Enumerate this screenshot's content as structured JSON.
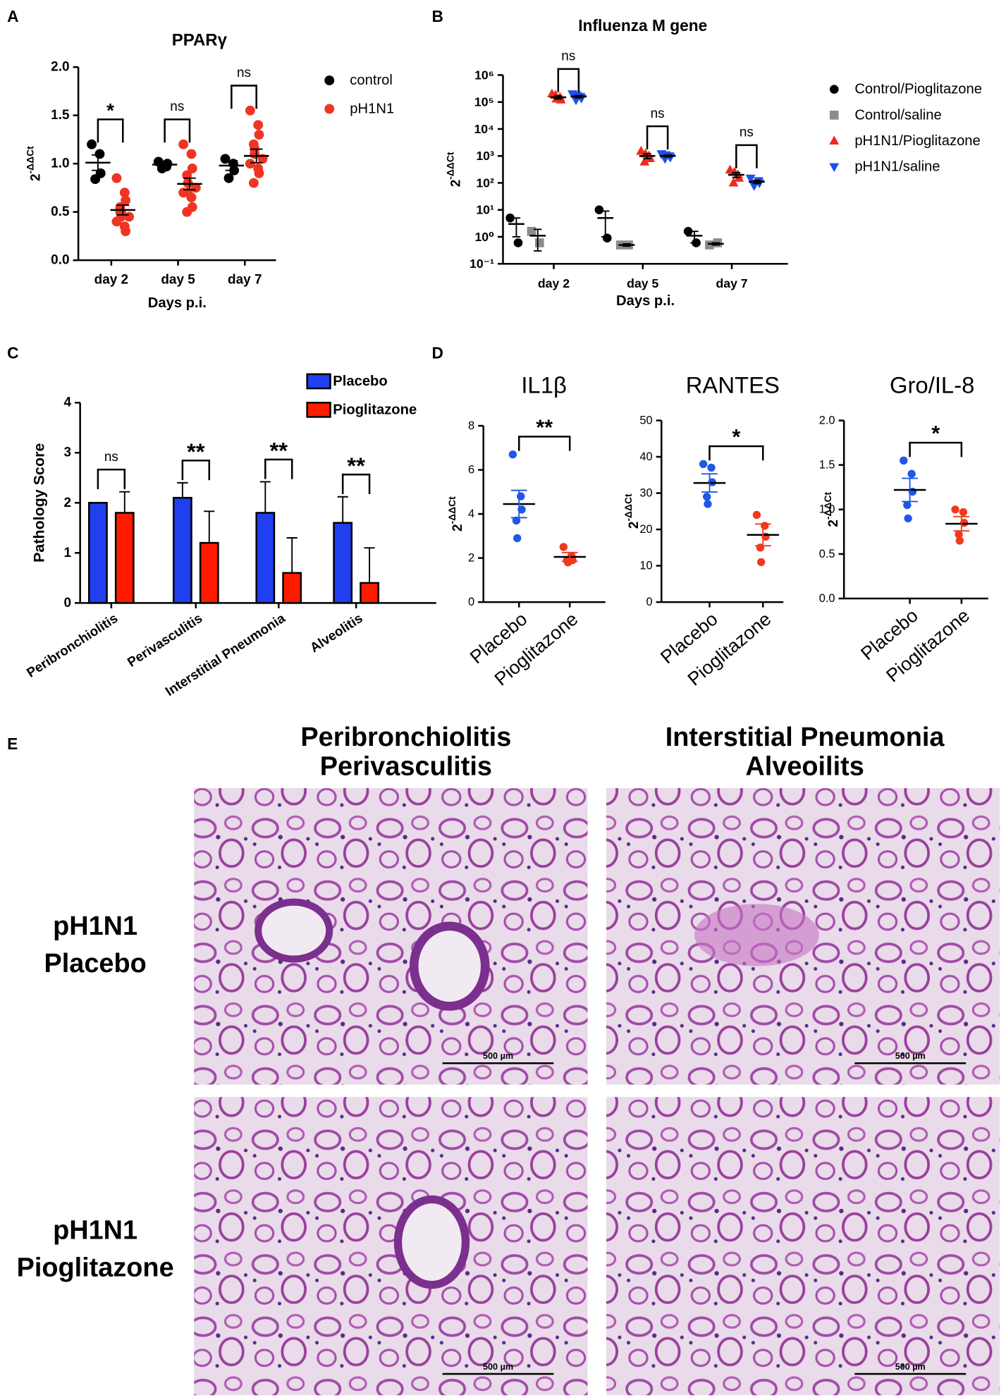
{
  "panel_labels": [
    "A",
    "B",
    "C",
    "D",
    "E"
  ],
  "chart_data": [
    {
      "type": "dot",
      "title": "PPARγ",
      "ylabel": [
        "2",
        "-ΔΔCt"
      ],
      "xlabel": "Days p.i.",
      "categories": [
        "day 2",
        "day 5",
        "day 7"
      ],
      "ylim": [
        0,
        2
      ],
      "yticks": [
        {
          "value": 0,
          "label": "0.0"
        },
        0.5,
        {
          "value": 1,
          "label": "1.0"
        },
        1.5,
        {
          "value": 2,
          "label": "2.0"
        }
      ],
      "legend": "right",
      "series": [
        {
          "name": "control",
          "color": "#000000",
          "marker": "circle",
          "values": [
            [
              1.2,
              1.1,
              0.9,
              0.84
            ],
            [
              1.02,
              0.97,
              1.0,
              0.95
            ],
            [
              1.05,
              1.0,
              0.93,
              0.85
            ]
          ],
          "mean": [
            1.01,
            0.99,
            0.98
          ],
          "sem": [
            0.08,
            0.03,
            0.05
          ]
        },
        {
          "name": "pH1N1",
          "color": "#ee3524",
          "marker": "circle",
          "values": [
            [
              0.85,
              0.7,
              0.62,
              0.55,
              0.5,
              0.45,
              0.4,
              0.35,
              0.3,
              0.5,
              0.45
            ],
            [
              1.2,
              1.1,
              0.95,
              0.88,
              0.8,
              0.75,
              0.7,
              0.65,
              0.55,
              0.5,
              0.7
            ],
            [
              1.55,
              1.4,
              1.3,
              1.2,
              1.1,
              1.05,
              1.0,
              0.95,
              0.9,
              0.8,
              1.15
            ]
          ],
          "mean": [
            0.52,
            0.79,
            1.08
          ],
          "sem": [
            0.05,
            0.06,
            0.07
          ]
        }
      ],
      "significance": [
        "*",
        "ns",
        "ns"
      ]
    },
    {
      "type": "dot",
      "title": "Influenza M gene",
      "ylabel": [
        "2",
        "-ΔΔCt"
      ],
      "xlabel": "Days p.i.",
      "categories": [
        "day 2",
        "day 5",
        "day 7"
      ],
      "log": true,
      "ylim": [
        0.1,
        1000000
      ],
      "yticks": [
        {
          "value": 0.1,
          "label": "10⁻¹"
        },
        {
          "value": 1,
          "label": "10⁰"
        },
        {
          "value": 10,
          "label": "10¹"
        },
        {
          "value": 100,
          "label": "10²"
        },
        {
          "value": 1000,
          "label": "10³"
        },
        {
          "value": 10000,
          "label": "10⁴"
        },
        {
          "value": 100000,
          "label": "10⁵"
        },
        {
          "value": 1000000,
          "label": "10⁶"
        }
      ],
      "legend": "right",
      "series": [
        {
          "name": "Control/Pioglitazone",
          "color": "#000000",
          "marker": "circle",
          "values": [
            [
              5,
              0.6
            ],
            [
              10,
              0.9
            ],
            [
              1.6,
              0.6
            ]
          ],
          "mean": [
            3,
            5,
            1.1
          ],
          "sem": [
            2,
            4,
            0.5
          ]
        },
        {
          "name": "Control/saline",
          "color": "#8c8c8c",
          "marker": "square",
          "values": [
            [
              1.6,
              0.6
            ],
            [
              0.5,
              0.5
            ],
            [
              0.5,
              0.6
            ]
          ],
          "mean": [
            1.1,
            0.5,
            0.55
          ],
          "sem": [
            0.8,
            0.05,
            0.05
          ]
        },
        {
          "name": "pH1N1/Pioglitazone",
          "color": "#ee2a1b",
          "marker": "triangle",
          "values": [
            [
              200000,
              150000,
              120000,
              180000,
              130000
            ],
            [
              1500,
              1000,
              800,
              600,
              1200
            ],
            [
              300,
              200,
              150,
              100,
              250
            ]
          ],
          "mean": [
            150000,
            1000,
            200
          ],
          "sem": [
            20000,
            200,
            40
          ]
        },
        {
          "name": "pH1N1/saline",
          "color": "#1e4fe6",
          "marker": "triangle-down",
          "values": [
            [
              200000,
              160000,
              140000,
              120000,
              180000
            ],
            [
              1200,
              1000,
              900,
              800,
              1100
            ],
            [
              150,
              120,
              100,
              80,
              90
            ]
          ],
          "mean": [
            160000,
            1000,
            110
          ],
          "sem": [
            15000,
            80,
            15
          ]
        }
      ],
      "significance": [
        "ns",
        "ns",
        "ns"
      ]
    },
    {
      "type": "bar",
      "ylabel": "Pathology Score",
      "categories": [
        "Peribronchiolitis",
        "Perivasculitis",
        "Interstitial Pneumonia",
        "Alveolitis"
      ],
      "ylim": [
        0,
        4
      ],
      "yticks": [
        0,
        1,
        2,
        3,
        4
      ],
      "legend": "top",
      "series": [
        {
          "name": "Placebo",
          "color": "#1f3ff0",
          "values": [
            2.0,
            2.1,
            1.8,
            1.6
          ],
          "errors": [
            0,
            0.3,
            0.62,
            0.52
          ]
        },
        {
          "name": "Pioglitazone",
          "color": "#ff1a00",
          "values": [
            1.8,
            1.2,
            0.6,
            0.4
          ],
          "errors": [
            0.42,
            0.63,
            0.7,
            0.7
          ]
        }
      ],
      "significance": [
        "ns",
        "**",
        "**",
        "**"
      ]
    },
    {
      "type": "dot",
      "title": "IL1β",
      "ylabel": [
        "2",
        "-ΔΔCt"
      ],
      "categories": [
        "Placebo",
        "Pioglitazone"
      ],
      "colors": [
        "#1f57e6",
        "#f0391f"
      ],
      "values": [
        [
          6.7,
          4.8,
          4.2,
          3.7,
          2.9
        ],
        [
          2.5,
          2.1,
          1.9,
          1.9,
          1.8
        ]
      ],
      "mean": [
        4.45,
        2.05
      ],
      "sem": [
        0.62,
        0.2
      ],
      "ylim": [
        0,
        8
      ],
      "yticks": [
        0,
        2,
        4,
        6,
        8
      ],
      "significance": "**"
    },
    {
      "type": "dot",
      "title": "RANTES",
      "ylabel": [
        "2",
        "-ΔΔCt"
      ],
      "categories": [
        "Placebo",
        "Pioglitazone"
      ],
      "colors": [
        "#1f57e6",
        "#f0391f"
      ],
      "values": [
        [
          38,
          37,
          33,
          29,
          27
        ],
        [
          24,
          21,
          18,
          15,
          11
        ]
      ],
      "mean": [
        32.8,
        18.5
      ],
      "sem": [
        2.5,
        3
      ],
      "ylim": [
        0,
        50
      ],
      "yticks": [
        0,
        10,
        20,
        30,
        40,
        50
      ],
      "significance": "*"
    },
    {
      "type": "dot",
      "title": "Gro/IL-8",
      "ylabel": [
        "2",
        "-ΔΔCt"
      ],
      "categories": [
        "Placebo",
        "Pioglitazone"
      ],
      "colors": [
        "#1f57e6",
        "#f0391f"
      ],
      "values": [
        [
          1.55,
          1.4,
          1.2,
          1.05,
          0.9
        ],
        [
          1.0,
          0.97,
          0.85,
          0.72,
          0.65
        ]
      ],
      "mean": [
        1.22,
        0.84
      ],
      "sem": [
        0.13,
        0.08
      ],
      "ylim": [
        0,
        2
      ],
      "yticks": [
        {
          "value": 0,
          "label": "0.0"
        },
        0.5,
        {
          "value": 1,
          "label": "1.0"
        },
        1.5,
        {
          "value": 2,
          "label": "2.0"
        }
      ],
      "significance": "*"
    }
  ],
  "figure_e": {
    "columns": [
      [
        "Peribronchiolitis",
        "Perivasculitis"
      ],
      [
        "Interstitial Pneumonia",
        "Alveoilits"
      ]
    ],
    "rows": [
      [
        "pH1N1",
        "Placebo"
      ],
      [
        "pH1N1",
        "Pioglitazone"
      ]
    ],
    "scale_bars": [
      "500 µm",
      "500 µm",
      "500 µm",
      "500 µm"
    ]
  }
}
